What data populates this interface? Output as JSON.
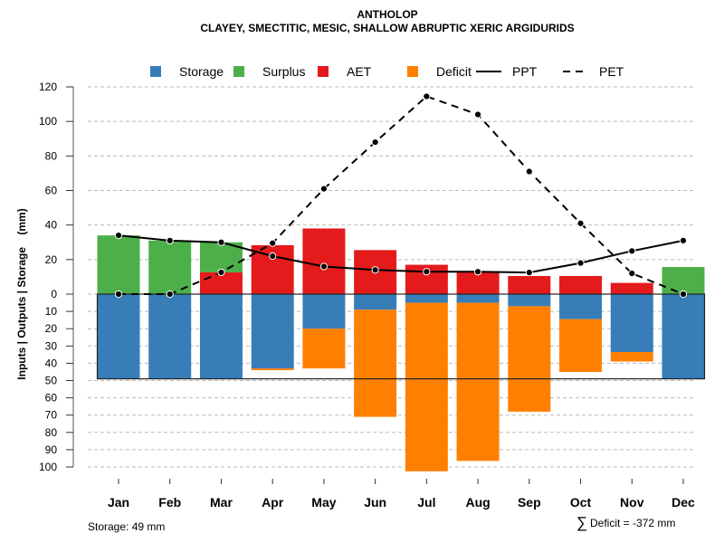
{
  "chart_data": {
    "type": "bar",
    "title": "ANTHOLOP",
    "subtitle": "CLAYEY, SMECTITIC, MESIC, SHALLOW ABRUPTIC XERIC ARGIDURIDS",
    "xlabel": "",
    "ylabel": "Inputs | Outputs | Storage    (mm)",
    "categories": [
      "Jan",
      "Feb",
      "Mar",
      "Apr",
      "May",
      "Jun",
      "Jul",
      "Aug",
      "Sep",
      "Oct",
      "Nov",
      "Dec"
    ],
    "y_upper_ticks": [
      "0",
      "20",
      "40",
      "60",
      "80",
      "100",
      "120"
    ],
    "y_lower_ticks": [
      "10",
      "20",
      "30",
      "40",
      "50",
      "60",
      "70",
      "80",
      "90",
      "100"
    ],
    "ylim_upper": [
      0,
      120
    ],
    "ylim_lower": [
      0,
      100
    ],
    "grid": true,
    "legend_position": "top",
    "legend": [
      {
        "name": "Storage",
        "kind": "box",
        "color": "#377EB8"
      },
      {
        "name": "Surplus",
        "kind": "box",
        "color": "#4DAF4A"
      },
      {
        "name": "AET",
        "kind": "box",
        "color": "#E41A1C"
      },
      {
        "name": "Deficit",
        "kind": "box",
        "color": "#FF7F00"
      },
      {
        "name": "PPT",
        "kind": "solid-line",
        "color": "#000000"
      },
      {
        "name": "PET",
        "kind": "dashed-line",
        "color": "#000000"
      }
    ],
    "series": [
      {
        "name": "Storage",
        "direction": "down",
        "values": [
          49,
          49,
          49,
          43,
          20,
          9,
          5,
          5,
          7,
          14.5,
          33.5,
          49
        ]
      },
      {
        "name": "Deficit",
        "direction": "down",
        "values": [
          0,
          0,
          0,
          1,
          23,
          62,
          97.5,
          91.5,
          61,
          30.5,
          5.5,
          0
        ]
      },
      {
        "name": "AET",
        "direction": "up",
        "values": [
          0,
          0,
          12.6,
          28.3,
          38,
          25.5,
          17,
          13,
          10.5,
          10.5,
          6.5,
          0
        ]
      },
      {
        "name": "Surplus",
        "direction": "up",
        "values": [
          34,
          31,
          17.4,
          0,
          0,
          0,
          0,
          0,
          0,
          0,
          0,
          15.7
        ]
      },
      {
        "name": "PPT",
        "type": "line",
        "values": [
          34,
          31,
          30,
          22,
          16,
          14,
          13,
          13,
          12.5,
          18,
          25,
          31
        ]
      },
      {
        "name": "PET",
        "type": "line",
        "values": [
          0,
          0,
          12.6,
          29.5,
          61,
          88,
          114.5,
          104,
          71,
          41,
          12,
          0
        ]
      }
    ],
    "storage_capacity": 49,
    "annotations": {
      "storage": "Storage: 49 mm",
      "deficit_sum": "Deficit = -372 mm",
      "deficit_symbol": "∑"
    }
  }
}
